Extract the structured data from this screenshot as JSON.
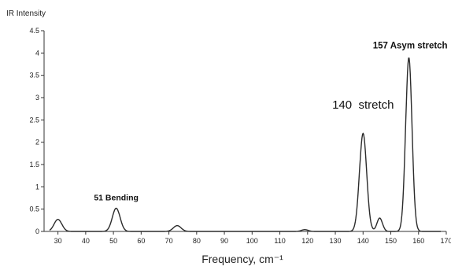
{
  "chart_data": {
    "type": "line",
    "title": "",
    "xlabel": "Frequency, cm⁻¹",
    "ylabel": "IR Intensity",
    "xlim": [
      25,
      170
    ],
    "ylim": [
      0,
      4.5
    ],
    "xticks": [
      30,
      40,
      50,
      60,
      70,
      80,
      90,
      100,
      110,
      120,
      130,
      140,
      150,
      160,
      170
    ],
    "yticks": [
      0,
      0.5,
      1,
      1.5,
      2,
      2.5,
      3,
      3.5,
      4,
      4.5
    ],
    "ytick_labels": [
      "0",
      "0.5",
      "1",
      "1.5",
      "2",
      "2.5",
      "3",
      "3.5",
      "4",
      "4.5"
    ],
    "grid": false,
    "line_color": "#2b2b2b",
    "peaks": [
      {
        "x": 30,
        "y": 0.27
      },
      {
        "x": 51,
        "y": 0.52
      },
      {
        "x": 73,
        "y": 0.13
      },
      {
        "x": 119,
        "y": 0.04
      },
      {
        "x": 140,
        "y": 2.2
      },
      {
        "x": 146,
        "y": 0.3
      },
      {
        "x": 156.5,
        "y": 3.9
      }
    ],
    "annotations": [
      {
        "text": "51 Bending",
        "x": 51,
        "y": 0.7
      },
      {
        "text": "140  stretch",
        "x": 140,
        "y": 2.75
      },
      {
        "text": "157 Asym stretch",
        "x": 157,
        "y": 4.1
      }
    ]
  }
}
